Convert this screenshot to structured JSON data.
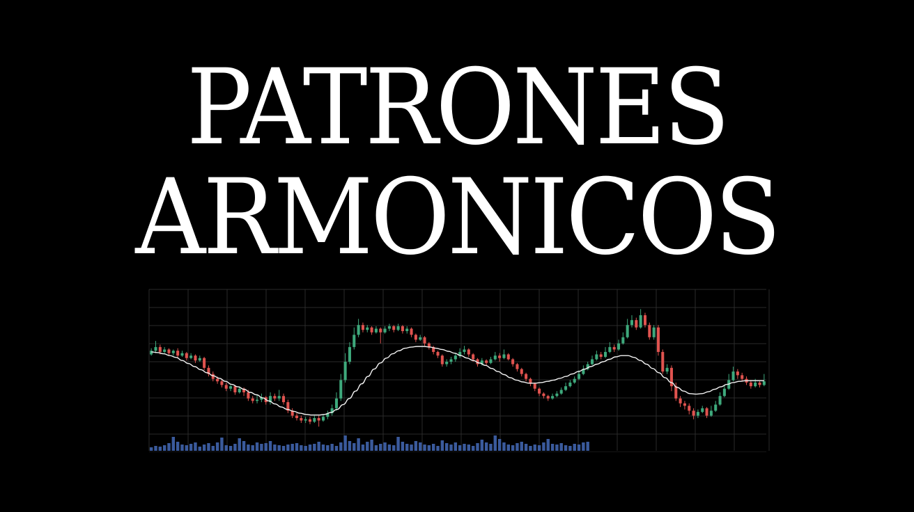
{
  "title": {
    "line1": "PATRONES",
    "line2": "ARMONICOS"
  },
  "colors": {
    "background": "#000000",
    "text": "#ffffff",
    "up_candle": "#3ea97c",
    "down_candle": "#e0534f",
    "moving_average": "#f2f2f2",
    "volume": "#3a5a9c",
    "grid": "#2a2a2a"
  },
  "chart_data": {
    "type": "candlestick",
    "grid": true,
    "legend": "none",
    "ylim": [
      0,
      100
    ],
    "volume_ylim": [
      0,
      30
    ],
    "candles": [
      {
        "o": 56,
        "c": 59,
        "h": 61,
        "l": 55
      },
      {
        "o": 59,
        "c": 62,
        "h": 67,
        "l": 57
      },
      {
        "o": 62,
        "c": 58,
        "h": 64,
        "l": 56
      },
      {
        "o": 58,
        "c": 60,
        "h": 62,
        "l": 57
      },
      {
        "o": 60,
        "c": 57,
        "h": 61,
        "l": 55
      },
      {
        "o": 57,
        "c": 59,
        "h": 60,
        "l": 55
      },
      {
        "o": 59,
        "c": 55,
        "h": 61,
        "l": 53
      },
      {
        "o": 55,
        "c": 57,
        "h": 59,
        "l": 54
      },
      {
        "o": 57,
        "c": 53,
        "h": 58,
        "l": 51
      },
      {
        "o": 53,
        "c": 55,
        "h": 57,
        "l": 52
      },
      {
        "o": 55,
        "c": 51,
        "h": 56,
        "l": 49
      },
      {
        "o": 51,
        "c": 53,
        "h": 55,
        "l": 50
      },
      {
        "o": 53,
        "c": 45,
        "h": 54,
        "l": 43
      },
      {
        "o": 45,
        "c": 40,
        "h": 47,
        "l": 38
      },
      {
        "o": 40,
        "c": 36,
        "h": 42,
        "l": 34
      },
      {
        "o": 36,
        "c": 34,
        "h": 38,
        "l": 32
      },
      {
        "o": 34,
        "c": 31,
        "h": 36,
        "l": 29
      },
      {
        "o": 31,
        "c": 28,
        "h": 33,
        "l": 26
      },
      {
        "o": 28,
        "c": 30,
        "h": 31,
        "l": 26
      },
      {
        "o": 30,
        "c": 25,
        "h": 31,
        "l": 23
      },
      {
        "o": 25,
        "c": 28,
        "h": 30,
        "l": 24
      },
      {
        "o": 28,
        "c": 25,
        "h": 29,
        "l": 22
      },
      {
        "o": 25,
        "c": 20,
        "h": 27,
        "l": 18
      },
      {
        "o": 20,
        "c": 18,
        "h": 22,
        "l": 16
      },
      {
        "o": 18,
        "c": 19,
        "h": 23,
        "l": 16
      },
      {
        "o": 19,
        "c": 21,
        "h": 24,
        "l": 17
      },
      {
        "o": 21,
        "c": 17,
        "h": 22,
        "l": 15
      },
      {
        "o": 17,
        "c": 22,
        "h": 25,
        "l": 15
      },
      {
        "o": 22,
        "c": 20,
        "h": 24,
        "l": 18
      },
      {
        "o": 20,
        "c": 22,
        "h": 27,
        "l": 18
      },
      {
        "o": 22,
        "c": 17,
        "h": 24,
        "l": 15
      },
      {
        "o": 17,
        "c": 10,
        "h": 19,
        "l": 8
      },
      {
        "o": 10,
        "c": 6,
        "h": 12,
        "l": 4
      },
      {
        "o": 6,
        "c": 4,
        "h": 8,
        "l": 2
      },
      {
        "o": 4,
        "c": 2,
        "h": 6,
        "l": 0
      },
      {
        "o": 2,
        "c": 3,
        "h": 5,
        "l": 0
      },
      {
        "o": 3,
        "c": 1,
        "h": 5,
        "l": -1
      },
      {
        "o": 1,
        "c": 4,
        "h": 6,
        "l": 0
      },
      {
        "o": 4,
        "c": 2,
        "h": 6,
        "l": -3
      },
      {
        "o": 2,
        "c": 5,
        "h": 7,
        "l": 1
      },
      {
        "o": 5,
        "c": 8,
        "h": 10,
        "l": 3
      },
      {
        "o": 8,
        "c": 12,
        "h": 15,
        "l": 6
      },
      {
        "o": 12,
        "c": 20,
        "h": 25,
        "l": 10
      },
      {
        "o": 20,
        "c": 35,
        "h": 40,
        "l": 18
      },
      {
        "o": 35,
        "c": 50,
        "h": 57,
        "l": 33
      },
      {
        "o": 50,
        "c": 62,
        "h": 66,
        "l": 48
      },
      {
        "o": 62,
        "c": 72,
        "h": 78,
        "l": 60
      },
      {
        "o": 72,
        "c": 80,
        "h": 85,
        "l": 70
      },
      {
        "o": 80,
        "c": 76,
        "h": 82,
        "l": 74
      },
      {
        "o": 76,
        "c": 78,
        "h": 80,
        "l": 74
      },
      {
        "o": 78,
        "c": 74,
        "h": 79,
        "l": 72
      },
      {
        "o": 74,
        "c": 77,
        "h": 79,
        "l": 73
      },
      {
        "o": 77,
        "c": 74,
        "h": 78,
        "l": 65
      },
      {
        "o": 74,
        "c": 77,
        "h": 79,
        "l": 73
      },
      {
        "o": 77,
        "c": 79,
        "h": 81,
        "l": 75
      },
      {
        "o": 79,
        "c": 76,
        "h": 80,
        "l": 74
      },
      {
        "o": 76,
        "c": 79,
        "h": 81,
        "l": 75
      },
      {
        "o": 79,
        "c": 75,
        "h": 80,
        "l": 73
      },
      {
        "o": 75,
        "c": 77,
        "h": 79,
        "l": 73
      },
      {
        "o": 77,
        "c": 72,
        "h": 78,
        "l": 70
      },
      {
        "o": 72,
        "c": 68,
        "h": 73,
        "l": 66
      },
      {
        "o": 68,
        "c": 70,
        "h": 72,
        "l": 67
      },
      {
        "o": 70,
        "c": 65,
        "h": 71,
        "l": 63
      },
      {
        "o": 65,
        "c": 62,
        "h": 66,
        "l": 60
      },
      {
        "o": 62,
        "c": 58,
        "h": 63,
        "l": 56
      },
      {
        "o": 58,
        "c": 55,
        "h": 59,
        "l": 53
      },
      {
        "o": 55,
        "c": 48,
        "h": 56,
        "l": 46
      },
      {
        "o": 48,
        "c": 50,
        "h": 52,
        "l": 46
      },
      {
        "o": 50,
        "c": 52,
        "h": 54,
        "l": 48
      },
      {
        "o": 52,
        "c": 55,
        "h": 57,
        "l": 50
      },
      {
        "o": 55,
        "c": 58,
        "h": 61,
        "l": 53
      },
      {
        "o": 58,
        "c": 60,
        "h": 63,
        "l": 56
      },
      {
        "o": 60,
        "c": 56,
        "h": 61,
        "l": 54
      },
      {
        "o": 56,
        "c": 52,
        "h": 57,
        "l": 50
      },
      {
        "o": 52,
        "c": 48,
        "h": 53,
        "l": 46
      },
      {
        "o": 48,
        "c": 51,
        "h": 53,
        "l": 47
      },
      {
        "o": 51,
        "c": 49,
        "h": 52,
        "l": 47
      },
      {
        "o": 49,
        "c": 52,
        "h": 54,
        "l": 48
      },
      {
        "o": 52,
        "c": 55,
        "h": 58,
        "l": 51
      },
      {
        "o": 55,
        "c": 53,
        "h": 57,
        "l": 50
      },
      {
        "o": 53,
        "c": 56,
        "h": 60,
        "l": 52
      },
      {
        "o": 56,
        "c": 52,
        "h": 57,
        "l": 51
      },
      {
        "o": 52,
        "c": 48,
        "h": 53,
        "l": 46
      },
      {
        "o": 48,
        "c": 44,
        "h": 49,
        "l": 42
      },
      {
        "o": 44,
        "c": 40,
        "h": 45,
        "l": 38
      },
      {
        "o": 40,
        "c": 36,
        "h": 41,
        "l": 34
      },
      {
        "o": 36,
        "c": 32,
        "h": 37,
        "l": 30
      },
      {
        "o": 32,
        "c": 28,
        "h": 33,
        "l": 26
      },
      {
        "o": 28,
        "c": 24,
        "h": 29,
        "l": 22
      },
      {
        "o": 24,
        "c": 22,
        "h": 25,
        "l": 20
      },
      {
        "o": 22,
        "c": 20,
        "h": 23,
        "l": 18
      },
      {
        "o": 20,
        "c": 22,
        "h": 24,
        "l": 19
      },
      {
        "o": 22,
        "c": 24,
        "h": 26,
        "l": 21
      },
      {
        "o": 24,
        "c": 27,
        "h": 29,
        "l": 23
      },
      {
        "o": 27,
        "c": 30,
        "h": 33,
        "l": 26
      },
      {
        "o": 30,
        "c": 33,
        "h": 35,
        "l": 29
      },
      {
        "o": 33,
        "c": 36,
        "h": 38,
        "l": 32
      },
      {
        "o": 36,
        "c": 40,
        "h": 43,
        "l": 35
      },
      {
        "o": 40,
        "c": 44,
        "h": 47,
        "l": 39
      },
      {
        "o": 44,
        "c": 48,
        "h": 50,
        "l": 43
      },
      {
        "o": 48,
        "c": 52,
        "h": 55,
        "l": 47
      },
      {
        "o": 52,
        "c": 56,
        "h": 59,
        "l": 51
      },
      {
        "o": 56,
        "c": 54,
        "h": 58,
        "l": 52
      },
      {
        "o": 54,
        "c": 58,
        "h": 62,
        "l": 53
      },
      {
        "o": 58,
        "c": 62,
        "h": 66,
        "l": 57
      },
      {
        "o": 62,
        "c": 60,
        "h": 64,
        "l": 58
      },
      {
        "o": 60,
        "c": 65,
        "h": 68,
        "l": 59
      },
      {
        "o": 65,
        "c": 70,
        "h": 74,
        "l": 64
      },
      {
        "o": 70,
        "c": 80,
        "h": 85,
        "l": 69
      },
      {
        "o": 80,
        "c": 84,
        "h": 88,
        "l": 78
      },
      {
        "o": 84,
        "c": 78,
        "h": 86,
        "l": 76
      },
      {
        "o": 78,
        "c": 88,
        "h": 93,
        "l": 77
      },
      {
        "o": 88,
        "c": 80,
        "h": 90,
        "l": 78
      },
      {
        "o": 80,
        "c": 70,
        "h": 82,
        "l": 68
      },
      {
        "o": 70,
        "c": 78,
        "h": 80,
        "l": 68
      },
      {
        "o": 78,
        "c": 58,
        "h": 80,
        "l": 55
      },
      {
        "o": 58,
        "c": 42,
        "h": 60,
        "l": 40
      },
      {
        "o": 42,
        "c": 45,
        "h": 48,
        "l": 40
      },
      {
        "o": 45,
        "c": 30,
        "h": 47,
        "l": 26
      },
      {
        "o": 30,
        "c": 20,
        "h": 33,
        "l": 18
      },
      {
        "o": 20,
        "c": 16,
        "h": 22,
        "l": 13
      },
      {
        "o": 16,
        "c": 14,
        "h": 18,
        "l": 11
      },
      {
        "o": 14,
        "c": 10,
        "h": 16,
        "l": 7
      },
      {
        "o": 10,
        "c": 6,
        "h": 12,
        "l": 3
      },
      {
        "o": 6,
        "c": 9,
        "h": 11,
        "l": 4
      },
      {
        "o": 9,
        "c": 12,
        "h": 14,
        "l": 8
      },
      {
        "o": 12,
        "c": 6,
        "h": 13,
        "l": 4
      },
      {
        "o": 6,
        "c": 10,
        "h": 14,
        "l": 5
      },
      {
        "o": 10,
        "c": 15,
        "h": 18,
        "l": 9
      },
      {
        "o": 15,
        "c": 22,
        "h": 25,
        "l": 14
      },
      {
        "o": 22,
        "c": 28,
        "h": 31,
        "l": 21
      },
      {
        "o": 28,
        "c": 35,
        "h": 40,
        "l": 27
      },
      {
        "o": 35,
        "c": 42,
        "h": 46,
        "l": 34
      },
      {
        "o": 42,
        "c": 39,
        "h": 44,
        "l": 36
      },
      {
        "o": 39,
        "c": 36,
        "h": 41,
        "l": 34
      },
      {
        "o": 36,
        "c": 33,
        "h": 38,
        "l": 31
      },
      {
        "o": 33,
        "c": 30,
        "h": 35,
        "l": 28
      },
      {
        "o": 30,
        "c": 33,
        "h": 36,
        "l": 29
      },
      {
        "o": 33,
        "c": 31,
        "h": 34,
        "l": 29
      },
      {
        "o": 31,
        "c": 34,
        "h": 40,
        "l": 30
      }
    ],
    "moving_average": [
      58,
      57.5,
      56.5,
      55,
      53.5,
      51,
      48.5,
      46,
      43.5,
      41,
      38.5,
      36.5,
      34,
      31.5,
      29.5,
      27.5,
      25,
      23,
      20.5,
      18,
      15.5,
      13,
      11,
      9.5,
      8,
      7,
      6.5,
      6.5,
      7,
      8.5,
      11,
      15,
      20,
      26,
      32,
      38,
      44,
      49,
      53,
      56.5,
      59,
      61,
      62,
      62.5,
      62.5,
      62,
      61,
      60,
      58.5,
      57,
      55,
      53,
      51,
      49,
      47,
      44.5,
      42,
      39.5,
      37,
      35,
      33.5,
      32.5,
      32.5,
      33,
      34,
      35,
      36.5,
      38,
      40,
      42,
      44,
      46,
      48,
      50,
      52,
      54,
      55,
      55,
      53.5,
      51,
      48,
      44.5,
      41,
      37,
      33,
      29,
      26,
      24,
      23.5,
      24,
      25.5,
      27.5,
      29.5,
      31.5,
      33,
      34,
      34.5,
      34.5,
      34.5,
      34.5
    ],
    "volume": [
      5,
      7,
      6,
      8,
      11,
      20,
      13,
      9,
      8,
      10,
      12,
      6,
      9,
      11,
      7,
      12,
      19,
      8,
      7,
      10,
      18,
      14,
      9,
      8,
      12,
      10,
      11,
      14,
      9,
      8,
      7,
      9,
      10,
      11,
      8,
      7,
      9,
      10,
      13,
      9,
      8,
      10,
      7,
      12,
      22,
      14,
      11,
      18,
      9,
      13,
      16,
      8,
      10,
      12,
      9,
      8,
      20,
      13,
      10,
      9,
      14,
      12,
      9,
      8,
      10,
      7,
      15,
      11,
      9,
      12,
      8,
      10,
      9,
      7,
      11,
      16,
      12,
      10,
      22,
      17,
      12,
      9,
      8,
      11,
      13,
      10,
      7,
      9,
      8,
      12,
      17,
      10,
      9,
      11,
      8,
      7,
      10,
      9,
      12,
      13
    ]
  }
}
